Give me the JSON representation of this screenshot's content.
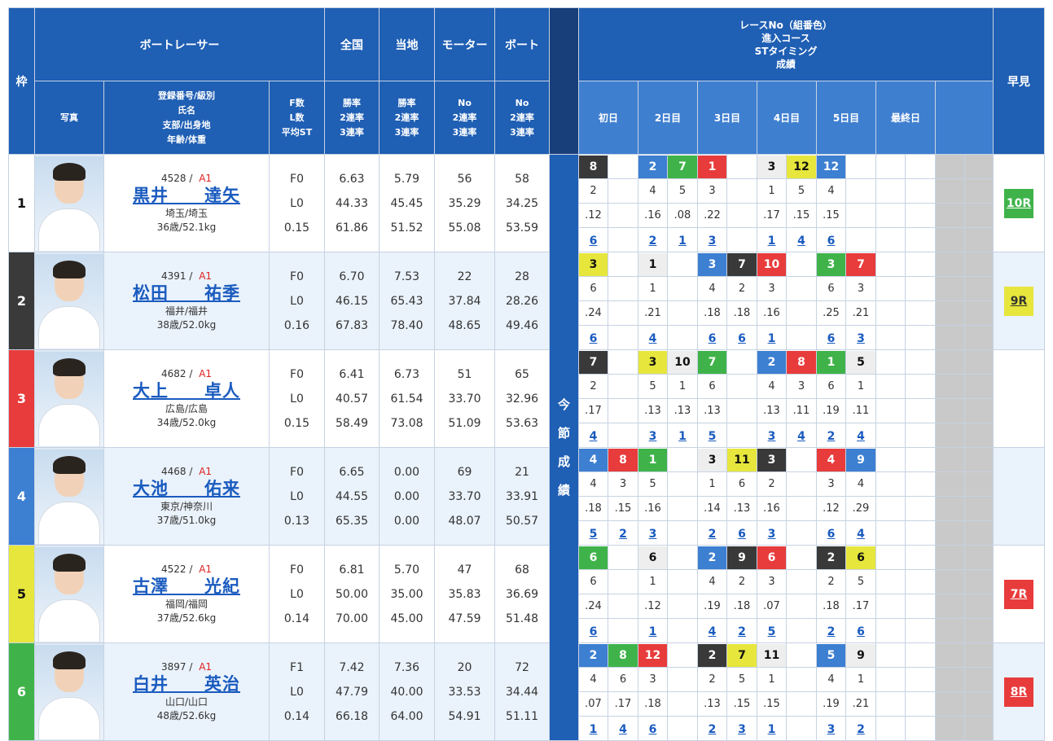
{
  "header": {
    "waku": "枠",
    "boat_racer": "ボートレーサー",
    "photo": "写真",
    "reg_lines": [
      "登録番号/級別",
      "氏名",
      "支部/出身地",
      "年齢/体重"
    ],
    "fl_lines": [
      "F数",
      "L数",
      "平均ST"
    ],
    "zenkoku": "全国",
    "touchi": "当地",
    "motor": "モーター",
    "boat": "ボート",
    "rate_lines": [
      "勝率",
      "2連率",
      "3連率"
    ],
    "no_lines": [
      "No",
      "2連率",
      "3連率"
    ],
    "race_info_lines": [
      "レースNo（組番色）",
      "進入コース",
      "STタイミング",
      "成績"
    ],
    "hayami": "早見",
    "konsetsu": [
      "今",
      "節",
      "成",
      "績"
    ],
    "days": [
      "初日",
      "2日目",
      "3日目",
      "4日目",
      "5日目",
      "最終日"
    ]
  },
  "colors": {
    "waku1": "#ffffff",
    "waku2": "#333333",
    "waku3": "#e83b3b",
    "waku4": "#3d7fd1",
    "waku5": "#e6e63c",
    "waku6": "#3fb34a"
  },
  "racers": [
    {
      "waku": "1",
      "reg": "4528",
      "cls": "A1",
      "name": "黒井　　達矢",
      "branch": "埼玉/埼玉",
      "age_weight": "36歳/52.1kg",
      "f": "F0",
      "l": "L0",
      "st": "0.15",
      "z_win": "6.63",
      "z_2": "44.33",
      "z_3": "61.86",
      "t_win": "5.79",
      "t_2": "45.45",
      "t_3": "51.52",
      "m_no": "56",
      "m_2": "35.29",
      "m_3": "55.08",
      "b_no": "58",
      "b_2": "34.25",
      "b_3": "53.59",
      "races": [
        {
          "no": "8",
          "c": "2",
          "course": "2",
          "st": ".12",
          "rank": "6"
        },
        null,
        {
          "no": "2",
          "c": "4",
          "course": "4",
          "st": ".16",
          "rank": "2"
        },
        {
          "no": "7",
          "c": "6",
          "course": "5",
          "st": ".08",
          "rank": "1"
        },
        {
          "no": "1",
          "c": "3",
          "course": "3",
          "st": ".22",
          "rank": "3"
        },
        null,
        {
          "no": "3",
          "c": "1",
          "course": "1",
          "st": ".17",
          "rank": "1"
        },
        {
          "no": "12",
          "c": "5",
          "course": "5",
          "st": ".15",
          "rank": "4"
        },
        {
          "no": "12",
          "c": "4",
          "course": "4",
          "st": ".15",
          "rank": "6"
        },
        null,
        null,
        null
      ],
      "hayami": "10R",
      "hayami_color": "g"
    },
    {
      "waku": "2",
      "reg": "4391",
      "cls": "A1",
      "name": "松田　　祐季",
      "branch": "福井/福井",
      "age_weight": "38歳/52.0kg",
      "f": "F0",
      "l": "L0",
      "st": "0.16",
      "z_win": "6.70",
      "z_2": "46.15",
      "z_3": "67.83",
      "t_win": "7.53",
      "t_2": "65.43",
      "t_3": "78.40",
      "m_no": "22",
      "m_2": "37.84",
      "m_3": "48.65",
      "b_no": "28",
      "b_2": "28.26",
      "b_3": "49.46",
      "races": [
        {
          "no": "3",
          "c": "5",
          "course": "6",
          "st": ".24",
          "rank": "6"
        },
        null,
        {
          "no": "1",
          "c": "1",
          "course": "1",
          "st": ".21",
          "rank": "4"
        },
        null,
        {
          "no": "3",
          "c": "4",
          "course": "4",
          "st": ".18",
          "rank": "6"
        },
        {
          "no": "7",
          "c": "2",
          "course": "2",
          "st": ".18",
          "rank": "6"
        },
        {
          "no": "10",
          "c": "3",
          "course": "3",
          "st": ".16",
          "rank": "1"
        },
        null,
        {
          "no": "3",
          "c": "6",
          "course": "6",
          "st": ".25",
          "rank": "6"
        },
        {
          "no": "7",
          "c": "3",
          "course": "3",
          "st": ".21",
          "rank": "3"
        },
        null,
        null
      ],
      "hayami": "9R",
      "hayami_color": "y"
    },
    {
      "waku": "3",
      "reg": "4682",
      "cls": "A1",
      "name": "大上　　卓人",
      "branch": "広島/広島",
      "age_weight": "34歳/52.0kg",
      "f": "F0",
      "l": "L0",
      "st": "0.15",
      "z_win": "6.41",
      "z_2": "40.57",
      "z_3": "58.49",
      "t_win": "6.73",
      "t_2": "61.54",
      "t_3": "73.08",
      "m_no": "51",
      "m_2": "33.70",
      "m_3": "51.09",
      "b_no": "65",
      "b_2": "32.96",
      "b_3": "53.63",
      "races": [
        {
          "no": "7",
          "c": "2",
          "course": "2",
          "st": ".17",
          "rank": "4"
        },
        null,
        {
          "no": "3",
          "c": "5",
          "course": "5",
          "st": ".13",
          "rank": "3"
        },
        {
          "no": "10",
          "c": "1",
          "course": "1",
          "st": ".13",
          "rank": "1"
        },
        {
          "no": "7",
          "c": "6",
          "course": "6",
          "st": ".13",
          "rank": "5"
        },
        null,
        {
          "no": "2",
          "c": "4",
          "course": "4",
          "st": ".13",
          "rank": "3"
        },
        {
          "no": "8",
          "c": "3",
          "course": "3",
          "st": ".11",
          "rank": "4"
        },
        {
          "no": "1",
          "c": "6",
          "course": "6",
          "st": ".19",
          "rank": "2"
        },
        {
          "no": "5",
          "c": "1",
          "course": "1",
          "st": ".11",
          "rank": "4"
        },
        null,
        null
      ],
      "hayami": "",
      "hayami_color": ""
    },
    {
      "waku": "4",
      "reg": "4468",
      "cls": "A1",
      "name": "大池　　佑来",
      "branch": "東京/神奈川",
      "age_weight": "37歳/51.0kg",
      "f": "F0",
      "l": "L0",
      "st": "0.13",
      "z_win": "6.65",
      "z_2": "44.55",
      "z_3": "65.35",
      "t_win": "0.00",
      "t_2": "0.00",
      "t_3": "0.00",
      "m_no": "69",
      "m_2": "33.70",
      "m_3": "48.07",
      "b_no": "21",
      "b_2": "33.91",
      "b_3": "50.57",
      "races": [
        {
          "no": "4",
          "c": "4",
          "course": "4",
          "st": ".18",
          "rank": "5"
        },
        {
          "no": "8",
          "c": "3",
          "course": "3",
          "st": ".15",
          "rank": "2"
        },
        {
          "no": "1",
          "c": "6",
          "course": "5",
          "st": ".16",
          "rank": "3"
        },
        null,
        {
          "no": "3",
          "c": "1",
          "course": "1",
          "st": ".14",
          "rank": "2"
        },
        {
          "no": "11",
          "c": "5",
          "course": "6",
          "st": ".13",
          "rank": "6"
        },
        {
          "no": "3",
          "c": "2",
          "course": "2",
          "st": ".16",
          "rank": "3"
        },
        null,
        {
          "no": "4",
          "c": "3",
          "course": "3",
          "st": ".12",
          "rank": "6"
        },
        {
          "no": "9",
          "c": "4",
          "course": "4",
          "st": ".29",
          "rank": "4"
        },
        null,
        null
      ],
      "hayami": "",
      "hayami_color": ""
    },
    {
      "waku": "5",
      "reg": "4522",
      "cls": "A1",
      "name": "古澤　　光紀",
      "branch": "福岡/福岡",
      "age_weight": "37歳/52.6kg",
      "f": "F0",
      "l": "L0",
      "st": "0.14",
      "z_win": "6.81",
      "z_2": "50.00",
      "z_3": "70.00",
      "t_win": "5.70",
      "t_2": "35.00",
      "t_3": "45.00",
      "m_no": "47",
      "m_2": "35.83",
      "m_3": "47.59",
      "b_no": "68",
      "b_2": "36.69",
      "b_3": "51.48",
      "races": [
        {
          "no": "6",
          "c": "6",
          "course": "6",
          "st": ".24",
          "rank": "6"
        },
        null,
        {
          "no": "6",
          "c": "1",
          "course": "1",
          "st": ".12",
          "rank": "1"
        },
        null,
        {
          "no": "2",
          "c": "4",
          "course": "4",
          "st": ".19",
          "rank": "4"
        },
        {
          "no": "9",
          "c": "2",
          "course": "2",
          "st": ".18",
          "rank": "2"
        },
        {
          "no": "6",
          "c": "3",
          "course": "3",
          "st": ".07",
          "rank": "5"
        },
        null,
        {
          "no": "2",
          "c": "2",
          "course": "2",
          "st": ".18",
          "rank": "2"
        },
        {
          "no": "6",
          "c": "5",
          "course": "5",
          "st": ".17",
          "rank": "6"
        },
        null,
        null
      ],
      "hayami": "7R",
      "hayami_color": "r"
    },
    {
      "waku": "6",
      "reg": "3897",
      "cls": "A1",
      "name": "白井　　英治",
      "branch": "山口/山口",
      "age_weight": "48歳/52.6kg",
      "f": "F1",
      "l": "L0",
      "st": "0.14",
      "z_win": "7.42",
      "z_2": "47.79",
      "z_3": "66.18",
      "t_win": "7.36",
      "t_2": "40.00",
      "t_3": "64.00",
      "m_no": "20",
      "m_2": "33.53",
      "m_3": "54.91",
      "b_no": "72",
      "b_2": "34.44",
      "b_3": "51.11",
      "races": [
        {
          "no": "2",
          "c": "4",
          "course": "4",
          "st": ".07",
          "rank": "1"
        },
        {
          "no": "8",
          "c": "6",
          "course": "6",
          "st": ".17",
          "rank": "4"
        },
        {
          "no": "12",
          "c": "3",
          "course": "3",
          "st": ".18",
          "rank": "6"
        },
        null,
        {
          "no": "2",
          "c": "2",
          "course": "2",
          "st": ".13",
          "rank": "2"
        },
        {
          "no": "7",
          "c": "5",
          "course": "5",
          "st": ".15",
          "rank": "3"
        },
        {
          "no": "11",
          "c": "1",
          "course": "1",
          "st": ".15",
          "rank": "1"
        },
        null,
        {
          "no": "5",
          "c": "4",
          "course": "4",
          "st": ".19",
          "rank": "3"
        },
        {
          "no": "9",
          "c": "1",
          "course": "1",
          "st": ".21",
          "rank": "2"
        },
        null,
        null
      ],
      "hayami": "8R",
      "hayami_color": "r"
    }
  ]
}
